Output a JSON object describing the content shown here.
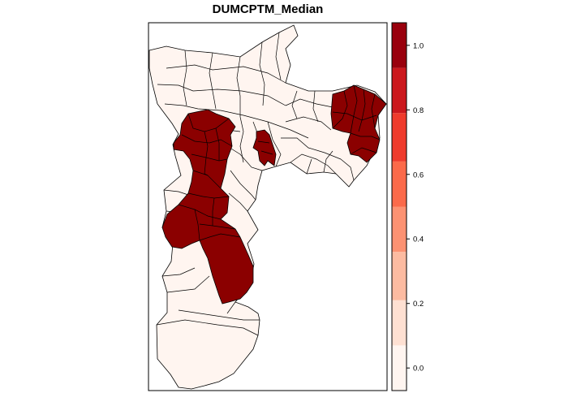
{
  "title": "DUMCPTM_Median",
  "legend": {
    "ticks": [
      {
        "value": 0.0,
        "label": "0.0"
      },
      {
        "value": 0.2,
        "label": "0.2"
      },
      {
        "value": 0.4,
        "label": "0.4"
      },
      {
        "value": 0.6,
        "label": "0.6"
      },
      {
        "value": 0.8,
        "label": "0.8"
      },
      {
        "value": 1.0,
        "label": "1.0"
      }
    ],
    "range": [
      -0.07,
      1.07
    ],
    "bins": [
      {
        "from": -0.07,
        "to": 0.07,
        "color": "#fff5f0"
      },
      {
        "from": 0.07,
        "to": 0.21,
        "color": "#fee0d2"
      },
      {
        "from": 0.21,
        "to": 0.36,
        "color": "#fcbba1"
      },
      {
        "from": 0.36,
        "to": 0.5,
        "color": "#fc9272"
      },
      {
        "from": 0.5,
        "to": 0.64,
        "color": "#fb6a4a"
      },
      {
        "from": 0.64,
        "to": 0.79,
        "color": "#ef3b2c"
      },
      {
        "from": 0.79,
        "to": 0.93,
        "color": "#cb181d"
      },
      {
        "from": 0.93,
        "to": 1.07,
        "color": "#99000d"
      }
    ]
  },
  "map": {
    "value_low": 0,
    "value_high": 1,
    "color_low": "#fff5f0",
    "color_high": "#8b0000",
    "border_color": "#000000"
  }
}
